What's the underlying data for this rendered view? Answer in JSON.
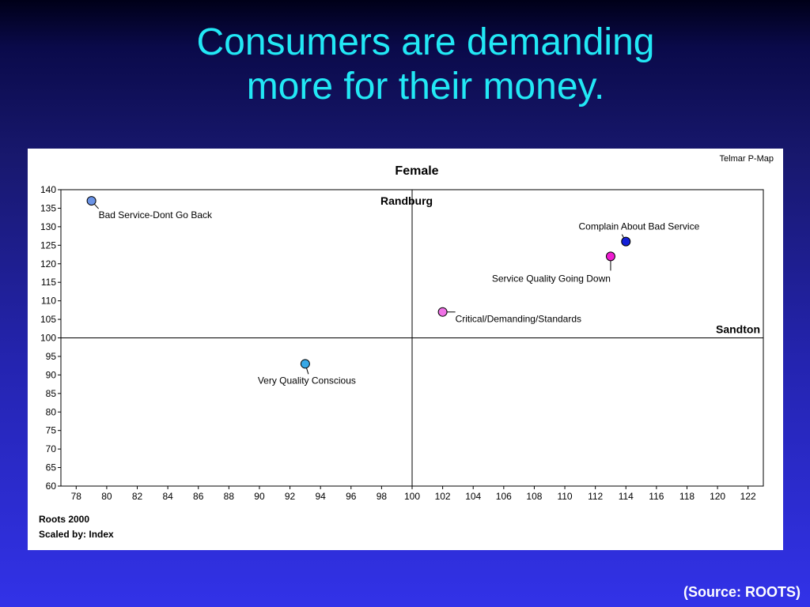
{
  "slide": {
    "title_line1": "Consumers are demanding",
    "title_line2": "more for their money.",
    "source": "(Source: ROOTS)"
  },
  "chart_data": {
    "type": "scatter",
    "title": "Female",
    "watermark": "Telmar P-Map",
    "footer_line1": "Roots 2000",
    "footer_line2": "Scaled by: Index",
    "xlim": [
      77,
      123
    ],
    "ylim": [
      60,
      140
    ],
    "x_ticks": [
      78,
      80,
      82,
      84,
      86,
      88,
      90,
      92,
      94,
      96,
      98,
      100,
      102,
      104,
      106,
      108,
      110,
      112,
      114,
      116,
      118,
      120,
      122
    ],
    "y_ticks": [
      60,
      65,
      70,
      75,
      80,
      85,
      90,
      95,
      100,
      105,
      110,
      115,
      120,
      125,
      130,
      135,
      140
    ],
    "crosshair": {
      "x": 100,
      "y": 100
    },
    "axis_labels": {
      "vertical": "Randburg",
      "horizontal": "Sandton"
    },
    "points": [
      {
        "label": "Bad Service-Dont Go Back",
        "x": 79,
        "y": 137,
        "color": "#6a93e6"
      },
      {
        "label": "Complain About Bad Service",
        "x": 114,
        "y": 126,
        "color": "#1420d8"
      },
      {
        "label": "Service Quality Going Down",
        "x": 113,
        "y": 122,
        "color": "#ee1cd0"
      },
      {
        "label": "Critical/Demanding/Standards",
        "x": 102,
        "y": 107,
        "color": "#ef72e6"
      },
      {
        "label": "Very Quality Conscious",
        "x": 93,
        "y": 93,
        "color": "#38a8e6"
      }
    ],
    "colors": {
      "background": "#ffffff",
      "axis": "#000000"
    }
  }
}
